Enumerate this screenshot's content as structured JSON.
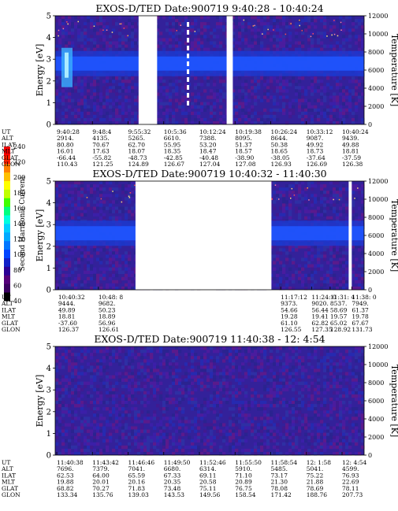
{
  "colorbar": {
    "label": "Second Harmonic Current",
    "ticks": [
      "40",
      "60",
      "80",
      "100",
      "120",
      "140",
      "160",
      "180",
      "200",
      "220",
      "240"
    ],
    "colors": [
      "#000000",
      "#3a0060",
      "#55007a",
      "#2b0095",
      "#1020c8",
      "#0044ff",
      "#0077ff",
      "#00aaff",
      "#00d0ff",
      "#00ffe0",
      "#00ff80",
      "#40ff00",
      "#c0ff00",
      "#ffff00",
      "#ffc000",
      "#ff8000",
      "#ff2000",
      "#ff0000"
    ]
  },
  "chart_data": [
    {
      "type": "heatmap",
      "title": "EXOS-D/TED   Date:900719  9:40:28 - 10:40:24",
      "ylabel": "Energy [eV]",
      "y2label": "Temperature [K]",
      "ylim": [
        0,
        5
      ],
      "y2lim": [
        0,
        12000
      ],
      "yticks": [
        "0",
        "1",
        "2",
        "3",
        "4",
        "5"
      ],
      "y2ticks": [
        "0",
        "2000",
        "4000",
        "6000",
        "8000",
        "10000",
        "12000"
      ],
      "row_labels": [
        "UT",
        "ALT",
        "ILAT",
        "MLT",
        "GLAT",
        "GLON"
      ],
      "columns": [
        [
          "9:40:28",
          "2914.",
          "80.80",
          "16.01",
          "-66.44",
          "110.43"
        ],
        [
          "9:48:4",
          "4135.",
          "70.67",
          "17.63",
          "-55.82",
          "121.25"
        ],
        [
          "9:55:32",
          "5265.",
          "62.70",
          "18.07",
          "-48.73",
          "124.89"
        ],
        [
          "10:5:36",
          "6610.",
          "55.95",
          "18.35",
          "-42.85",
          "126.67"
        ],
        [
          "10:12:24",
          "7388.",
          "53.20",
          "18.47",
          "-40.48",
          "127.04"
        ],
        [
          "10:19:38",
          "8095.",
          "51.37",
          "18.57",
          "-38.90",
          "127.08"
        ],
        [
          "10:26:24",
          "8644.",
          "50.38",
          "18.65",
          "-38.05",
          "126.93"
        ],
        [
          "10:33:12",
          "9087.",
          "49.92",
          "18.73",
          "-37.64",
          "126.69"
        ],
        [
          "10:40:24",
          "9439.",
          "49.88",
          "18.81",
          "-37.59",
          "126.38"
        ]
      ],
      "data_gaps": [
        [
          0.27,
          0.33
        ],
        [
          0.555,
          0.575
        ]
      ],
      "dominant_band_energy_ev": 2.8
    },
    {
      "type": "heatmap",
      "title": "EXOS-D/TED   Date:900719  10:40:32 - 11:40:30",
      "ylabel": "Energy [eV]",
      "y2label": "Temperature [K]",
      "ylim": [
        0,
        5
      ],
      "y2lim": [
        0,
        12000
      ],
      "yticks": [
        "0",
        "1",
        "2",
        "3",
        "4",
        "5"
      ],
      "y2ticks": [
        "0",
        "2000",
        "4000",
        "6000",
        "8000",
        "10000",
        "12000"
      ],
      "row_labels": [
        "UT",
        "ALT",
        "ILAT",
        "MLT",
        "GLAT",
        "GLON"
      ],
      "columns": [
        [
          "10:40:32",
          "9444.",
          "49.89",
          "18.81",
          "-37.60",
          "126.37"
        ],
        [
          "10:48: 8",
          "9682.",
          "50.23",
          "18.89",
          "56.96",
          "126.61"
        ],
        [
          "11:17:12",
          "9373.",
          "54.66",
          "19.28",
          "61.10",
          "126.55"
        ],
        [
          "11:24: 0",
          "9020.",
          "56.44",
          "19.41",
          "62.82",
          "127.35"
        ],
        [
          "11:31: 4",
          "8537.",
          "58.69",
          "19.57",
          "65.02",
          "128.92"
        ],
        [
          "11:38: 0",
          "7949.",
          "61.37",
          "19.78",
          "67.67",
          "131.73"
        ]
      ],
      "data_gaps": [
        [
          0.26,
          0.7
        ],
        [
          0.95,
          0.96
        ]
      ],
      "dominant_band_energy_ev": 2.6
    },
    {
      "type": "heatmap",
      "title": "EXOS-D/TED   Date:900719  11:40:38 - 12: 4:54",
      "ylabel": "Energy [eV]",
      "y2label": "Temperature [K]",
      "ylim": [
        0,
        5
      ],
      "y2lim": [
        0,
        12000
      ],
      "yticks": [
        "0",
        "1",
        "2",
        "3",
        "4",
        "5"
      ],
      "y2ticks": [
        "0",
        "2000",
        "4000",
        "6000",
        "8000",
        "10000",
        "12000"
      ],
      "row_labels": [
        "UT",
        "ALT",
        "ILAT",
        "MLT",
        "GLAT",
        "GLON"
      ],
      "columns": [
        [
          "11:40:38",
          "7696.",
          "62.53",
          "19.88",
          "68.82",
          "133.34"
        ],
        [
          "11:43:42",
          "7379.",
          "64.00",
          "20.01",
          "70.27",
          "135.76"
        ],
        [
          "11:46:46",
          "7041.",
          "65.59",
          "20.16",
          "71.83",
          "139.03"
        ],
        [
          "11:49:50",
          "6680.",
          "67.33",
          "20.35",
          "73.48",
          "143.53"
        ],
        [
          "11:52:46",
          "6314.",
          "69.11",
          "20.58",
          "75.11",
          "149.56"
        ],
        [
          "11:55:50",
          "5910.",
          "71.10",
          "20.89",
          "76.75",
          "158.54"
        ],
        [
          "11:58:54",
          "5485.",
          "73.17",
          "21.30",
          "78.08",
          "171.42"
        ],
        [
          "12: 1:58",
          "5041.",
          "75.22",
          "21.88",
          "78.69",
          "188.76"
        ],
        [
          "12: 4:54",
          "4599.",
          "76.93",
          "22.69",
          "78.11",
          "207.73"
        ]
      ],
      "data_gaps": [],
      "dominant_band_energy_ev": null
    }
  ]
}
